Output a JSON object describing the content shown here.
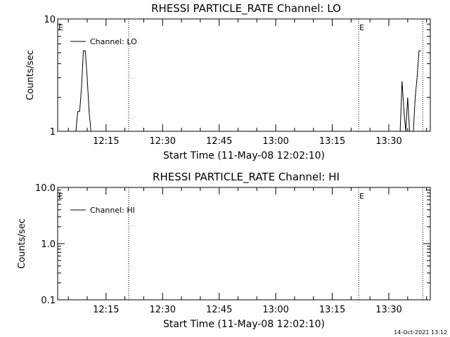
{
  "timestamp": "14-Oct-2021 13:12",
  "chart_data": [
    {
      "type": "line",
      "title": "RHESSI PARTICLE_RATE Channel: LO",
      "xlabel": "Start Time (11-May-08 12:02:10)",
      "ylabel": "Counts/sec",
      "y_scale": "log",
      "ylim": [
        1,
        10
      ],
      "y_ticks": [
        {
          "v": 1,
          "label": "1"
        },
        {
          "v": 10,
          "label": "10"
        }
      ],
      "xlim": [
        "12:02:10",
        "13:41:00"
      ],
      "x_ticks": [
        "12:15",
        "12:30",
        "12:45",
        "13:00",
        "13:15",
        "13:30"
      ],
      "legend": {
        "position": "top-left",
        "entries": [
          "Channel: LO"
        ]
      },
      "event_markers": [
        {
          "label": "E",
          "time": "12:02:10"
        },
        {
          "label": "E",
          "time": "13:22:00"
        }
      ],
      "dotted_lines": [
        "12:21:00",
        "13:22:00",
        "13:39:00"
      ],
      "series": [
        {
          "name": "Channel: LO",
          "points": [
            [
              "12:07:00",
              1.0
            ],
            [
              "12:07:30",
              1.5
            ],
            [
              "12:08:00",
              1.5
            ],
            [
              "12:08:30",
              2.5
            ],
            [
              "12:09:00",
              5.2
            ],
            [
              "12:09:30",
              5.2
            ],
            [
              "12:10:00",
              3.0
            ],
            [
              "12:10:30",
              1.5
            ],
            [
              "12:11:00",
              1.0
            ],
            [
              "13:33:00",
              1.0
            ],
            [
              "13:33:30",
              2.8
            ],
            [
              "13:34:00",
              1.5
            ],
            [
              "13:34:30",
              1.0
            ],
            [
              "13:35:00",
              2.0
            ],
            [
              "13:35:30",
              1.0
            ],
            [
              "13:36:30",
              1.0
            ],
            [
              "13:37:00",
              2.0
            ],
            [
              "13:37:30",
              3.0
            ],
            [
              "13:38:00",
              5.2
            ],
            [
              "13:38:30",
              5.2
            ]
          ]
        }
      ]
    },
    {
      "type": "line",
      "title": "RHESSI PARTICLE_RATE Channel: HI",
      "xlabel": "Start Time (11-May-08 12:02:10)",
      "ylabel": "Counts/sec",
      "y_scale": "log",
      "ylim": [
        0.1,
        10
      ],
      "y_ticks": [
        {
          "v": 0.1,
          "label": "0.1"
        },
        {
          "v": 1,
          "label": "1.0"
        },
        {
          "v": 10,
          "label": "10.0"
        }
      ],
      "xlim": [
        "12:02:10",
        "13:41:00"
      ],
      "x_ticks": [
        "12:15",
        "12:30",
        "12:45",
        "13:00",
        "13:15",
        "13:30"
      ],
      "legend": {
        "position": "top-left",
        "entries": [
          "Channel: HI"
        ]
      },
      "event_markers": [
        {
          "label": "E",
          "time": "12:02:10"
        },
        {
          "label": "E",
          "time": "13:22:00"
        }
      ],
      "dotted_lines": [
        "12:21:00",
        "13:22:00",
        "13:39:00"
      ],
      "series": [
        {
          "name": "Channel: HI",
          "points": []
        }
      ]
    }
  ]
}
